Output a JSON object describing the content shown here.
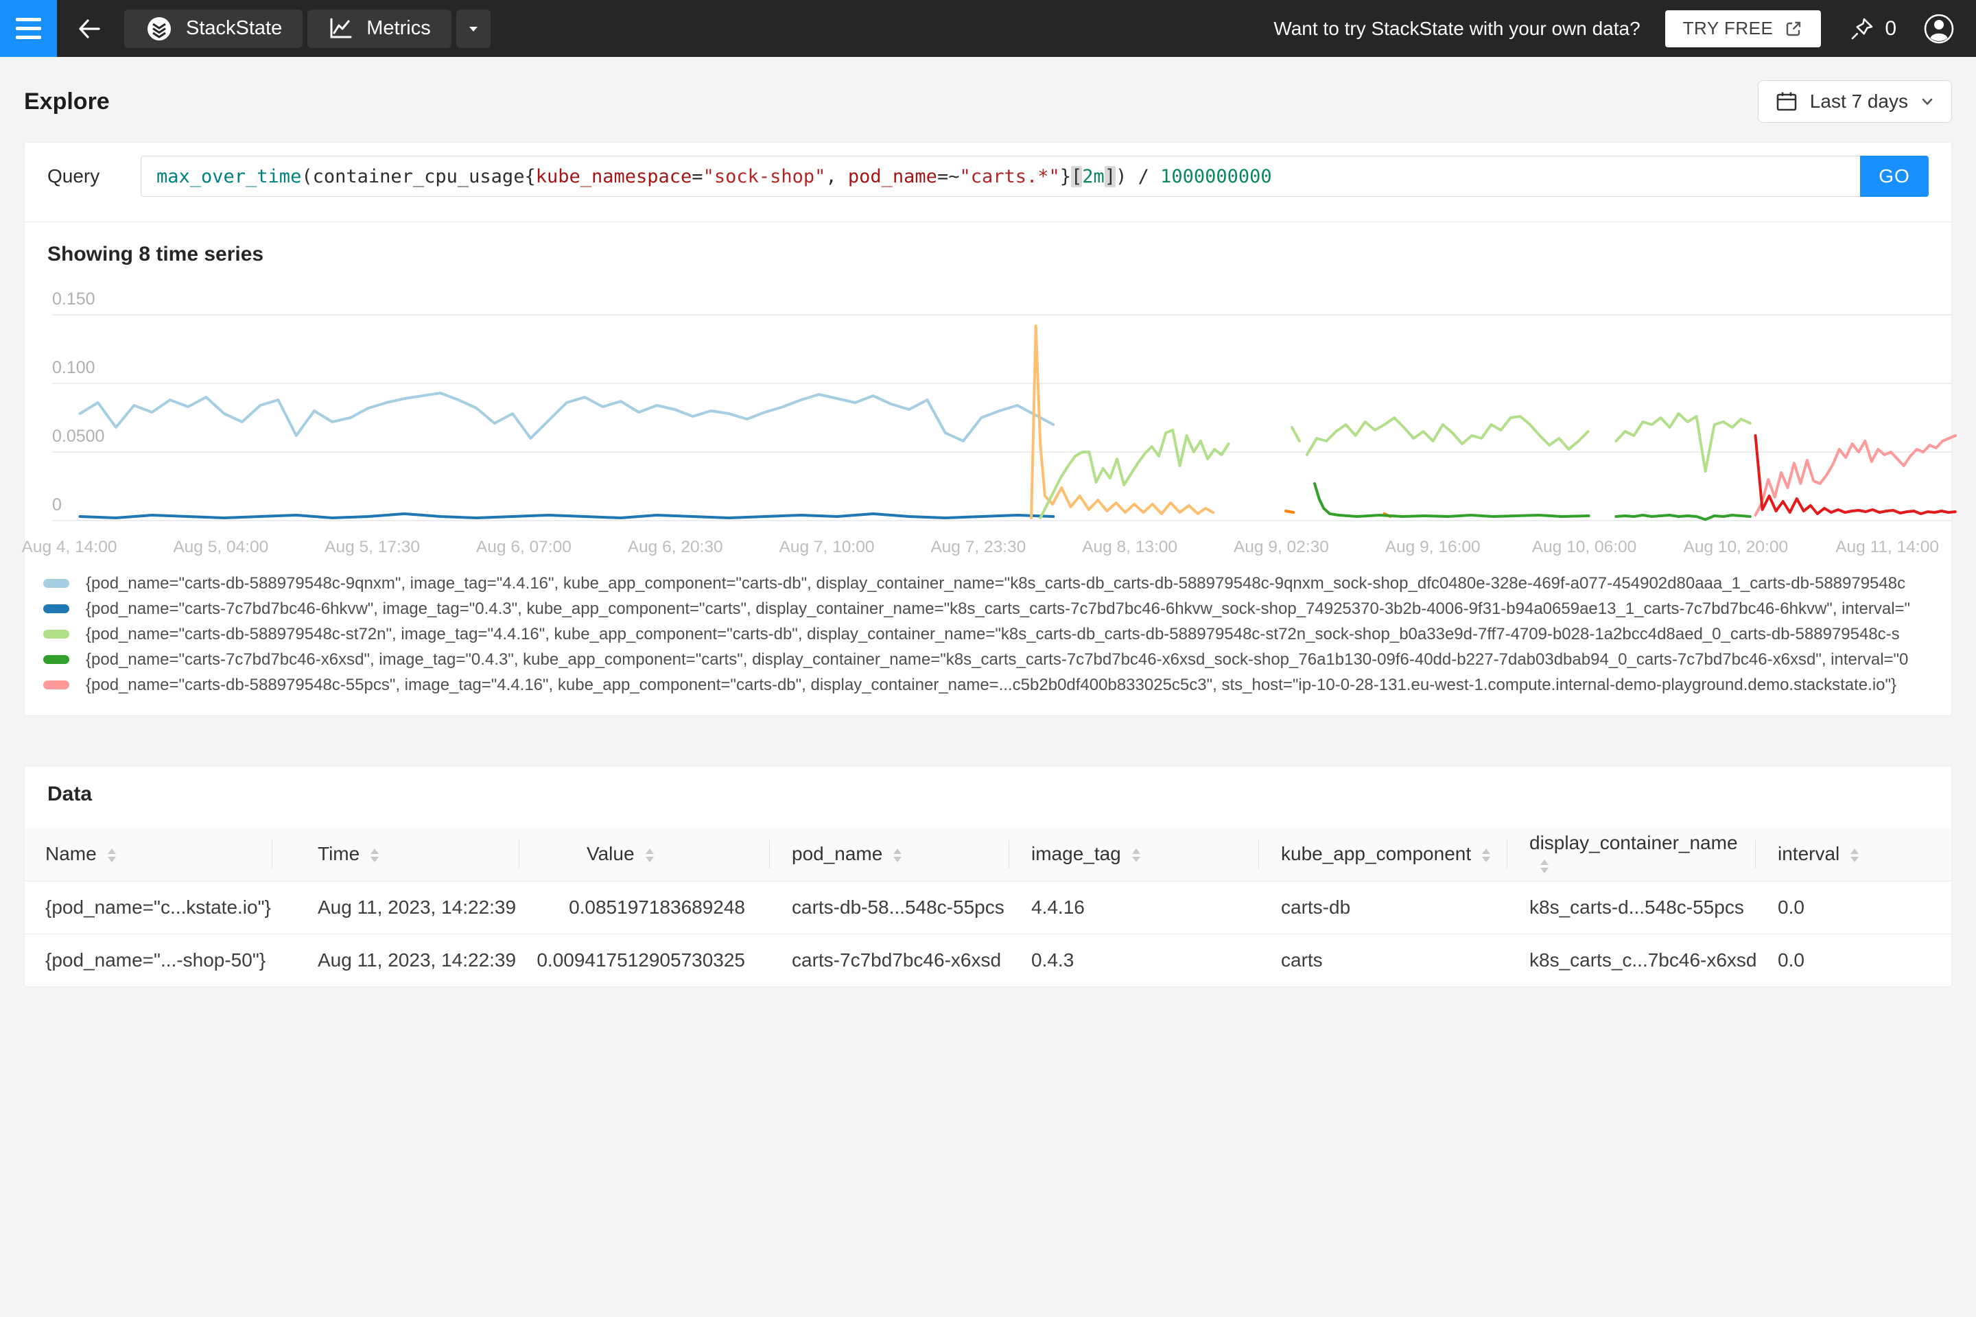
{
  "topbar": {
    "promo": "Want to try StackState with your own data?",
    "try_free_label": "TRY FREE",
    "pin_count": "0",
    "tabs": [
      {
        "label": "StackState"
      },
      {
        "label": "Metrics"
      }
    ]
  },
  "page": {
    "title": "Explore",
    "time_range": "Last 7 days"
  },
  "query": {
    "label": "Query",
    "go_label": "GO",
    "tokens": [
      {
        "t": "max_over_time",
        "c": "fn"
      },
      {
        "t": "(",
        "c": "p"
      },
      {
        "t": "container_cpu_usage",
        "c": "id"
      },
      {
        "t": "{",
        "c": "p"
      },
      {
        "t": "kube_namespace",
        "c": "lbl"
      },
      {
        "t": "=",
        "c": "p"
      },
      {
        "t": "\"sock-shop\"",
        "c": "str"
      },
      {
        "t": ", ",
        "c": "p"
      },
      {
        "t": "pod_name",
        "c": "lbl"
      },
      {
        "t": "=~",
        "c": "p"
      },
      {
        "t": "\"carts.*\"",
        "c": "str"
      },
      {
        "t": "}",
        "c": "p"
      },
      {
        "t": "[",
        "c": "pb"
      },
      {
        "t": "2m",
        "c": "dur"
      },
      {
        "t": "]",
        "c": "pb"
      },
      {
        "t": ")",
        "c": "p"
      },
      {
        "t": " / ",
        "c": "p"
      },
      {
        "t": "1000000000",
        "c": "num"
      }
    ]
  },
  "chart_data": {
    "type": "line",
    "title": "Showing 8 time series",
    "grid": true,
    "legend_position": "bottom",
    "ylim": [
      0,
      0.175
    ],
    "y_ticks": [
      {
        "label": "0.150",
        "v": 0.15
      },
      {
        "label": "0.100",
        "v": 0.1
      },
      {
        "label": "0.0500",
        "v": 0.05
      },
      {
        "label": "0",
        "v": 0
      }
    ],
    "x_ticks": [
      "Aug 4, 14:00",
      "Aug 5, 04:00",
      "Aug 5, 17:30",
      "Aug 6, 07:00",
      "Aug 6, 20:30",
      "Aug 7, 10:00",
      "Aug 7, 23:30",
      "Aug 8, 13:00",
      "Aug 9, 02:30",
      "Aug 9, 16:00",
      "Aug 10, 06:00",
      "Aug 10, 20:00",
      "Aug 11, 14:00"
    ],
    "x_unit": "tick-index (0 = Aug 4 14:00 … 12 = Aug 11 14:00)",
    "series": [
      {
        "name": "carts-db-588979548c-9qnxm",
        "color": "#a6cee3",
        "segments": [
          {
            "t0": 0.07,
            "dt": 0.119,
            "v": [
              0.078,
              0.086,
              0.068,
              0.084,
              0.079,
              0.088,
              0.083,
              0.09,
              0.078,
              0.072,
              0.084,
              0.088,
              0.062,
              0.08,
              0.072,
              0.075,
              0.082,
              0.086,
              0.089,
              0.091,
              0.093,
              0.088,
              0.082,
              0.071,
              0.078,
              0.06,
              0.073,
              0.086,
              0.09,
              0.083,
              0.087,
              0.079,
              0.084,
              0.081,
              0.076,
              0.08,
              0.078,
              0.074,
              0.079,
              0.083,
              0.088,
              0.092,
              0.089,
              0.086,
              0.091,
              0.085,
              0.081,
              0.088,
              0.064,
              0.058,
              0.075,
              0.08,
              0.084,
              0.077,
              0.07
            ]
          }
        ]
      },
      {
        "name": "carts-7c7bd7bc46-6hkvw",
        "color": "#1f78b4",
        "segments": [
          {
            "t0": 0.07,
            "dt": 0.238,
            "v": [
              0.003,
              0.002,
              0.004,
              0.003,
              0.002,
              0.003,
              0.004,
              0.002,
              0.003,
              0.005,
              0.003,
              0.002,
              0.003,
              0.004,
              0.003,
              0.002,
              0.004,
              0.003,
              0.002,
              0.003,
              0.004,
              0.003,
              0.005,
              0.003,
              0.002,
              0.003,
              0.004,
              0.003
            ]
          }
        ]
      },
      {
        "name": "unlabeled-light-orange",
        "color": "#fdbf6f",
        "segments": [
          {
            "pts": [
              [
                6.35,
                0.002
              ],
              [
                6.38,
                0.142
              ],
              [
                6.41,
                0.055
              ],
              [
                6.44,
                0.018
              ],
              [
                6.49,
                0.012
              ],
              [
                6.55,
                0.024
              ],
              [
                6.61,
                0.01
              ],
              [
                6.67,
                0.018
              ],
              [
                6.73,
                0.008
              ],
              [
                6.79,
                0.015
              ],
              [
                6.85,
                0.007
              ],
              [
                6.91,
                0.013
              ],
              [
                6.97,
                0.006
              ],
              [
                7.03,
                0.012
              ],
              [
                7.09,
                0.006
              ],
              [
                7.15,
                0.012
              ],
              [
                7.21,
                0.005
              ],
              [
                7.27,
                0.013
              ],
              [
                7.33,
                0.006
              ],
              [
                7.39,
                0.011
              ],
              [
                7.45,
                0.005
              ],
              [
                7.5,
                0.009
              ],
              [
                7.55,
                0.006
              ]
            ]
          }
        ]
      },
      {
        "name": "unlabeled-dark-orange",
        "color": "#ff7f00",
        "segments": [
          {
            "pts": [
              [
                8.03,
                0.007
              ],
              [
                8.08,
                0.006
              ]
            ]
          },
          {
            "pts": [
              [
                8.68,
                0.005
              ],
              [
                8.72,
                0.003
              ]
            ]
          }
        ]
      },
      {
        "name": "carts-db-588979548c-st72n",
        "color": "#b2df8a",
        "segments": [
          {
            "t0": 6.41,
            "dt": 0.046,
            "v": [
              0.002,
              0.012,
              0.022,
              0.032,
              0.04,
              0.047,
              0.05,
              0.05,
              0.028,
              0.038,
              0.031,
              0.045,
              0.026,
              0.034,
              0.042,
              0.049,
              0.054,
              0.047,
              0.064,
              0.066,
              0.04,
              0.062,
              0.05,
              0.058,
              0.045,
              0.052,
              0.048,
              0.056
            ]
          },
          {
            "pts": [
              [
                8.07,
                0.068
              ],
              [
                8.12,
                0.058
              ]
            ]
          },
          {
            "t0": 8.17,
            "dt": 0.064,
            "v": [
              0.048,
              0.06,
              0.058,
              0.065,
              0.07,
              0.062,
              0.072,
              0.066,
              0.07,
              0.075,
              0.068,
              0.06,
              0.065,
              0.058,
              0.07,
              0.064,
              0.056,
              0.062,
              0.06,
              0.07,
              0.066,
              0.075,
              0.076,
              0.07,
              0.062,
              0.055,
              0.06,
              0.052,
              0.058,
              0.065
            ]
          },
          {
            "t0": 10.21,
            "dt": 0.059,
            "v": [
              0.058,
              0.065,
              0.062,
              0.072,
              0.07,
              0.075,
              0.068,
              0.078,
              0.072,
              0.076,
              0.036,
              0.07,
              0.072,
              0.068,
              0.074,
              0.071
            ]
          }
        ]
      },
      {
        "name": "carts-7c7bd7bc46-x6xsd",
        "color": "#33a02c",
        "segments": [
          {
            "pts": [
              [
                8.22,
                0.027
              ],
              [
                8.25,
                0.016
              ],
              [
                8.28,
                0.009
              ],
              [
                8.32,
                0.005
              ],
              [
                8.38,
                0.004
              ],
              [
                8.5,
                0.003
              ],
              [
                8.65,
                0.004
              ],
              [
                8.8,
                0.003
              ],
              [
                8.95,
                0.0035
              ],
              [
                9.1,
                0.003
              ],
              [
                9.25,
                0.004
              ],
              [
                9.4,
                0.003
              ],
              [
                9.55,
                0.0035
              ],
              [
                9.7,
                0.004
              ],
              [
                9.85,
                0.003
              ],
              [
                10.03,
                0.0035
              ]
            ]
          },
          {
            "t0": 10.21,
            "dt": 0.059,
            "v": [
              0.003,
              0.0035,
              0.003,
              0.004,
              0.003,
              0.0035,
              0.004,
              0.003,
              0.0035,
              0.003,
              0.0008,
              0.0035,
              0.003,
              0.004,
              0.0035,
              0.003
            ]
          }
        ]
      },
      {
        "name": "carts-db-588979548c-55pcs",
        "color": "#fb9a99",
        "segments": [
          {
            "t0": 11.13,
            "dt": 0.0426,
            "v": [
              0.004,
              0.013,
              0.03,
              0.017,
              0.035,
              0.024,
              0.042,
              0.027,
              0.044,
              0.029,
              0.027,
              0.033,
              0.041,
              0.052,
              0.046,
              0.056,
              0.05,
              0.058,
              0.043,
              0.052,
              0.048,
              0.05,
              0.045,
              0.04,
              0.047,
              0.052,
              0.05,
              0.055,
              0.053,
              0.058,
              0.06,
              0.062
            ]
          }
        ]
      },
      {
        "name": "unlabeled-red",
        "color": "#e31a1c",
        "segments": [
          {
            "t0": 11.13,
            "dt": 0.0455,
            "v": [
              0.062,
              0.008,
              0.018,
              0.007,
              0.014,
              0.006,
              0.016,
              0.007,
              0.011,
              0.005,
              0.009,
              0.006,
              0.008,
              0.006,
              0.007,
              0.0075,
              0.0065,
              0.008,
              0.006,
              0.007,
              0.0075,
              0.0055,
              0.0065,
              0.007,
              0.005,
              0.0065,
              0.006,
              0.007,
              0.006,
              0.0065
            ]
          }
        ]
      }
    ]
  },
  "legend": {
    "items": [
      {
        "color": "#a6cee3",
        "text": "{pod_name=\"carts-db-588979548c-9qnxm\", image_tag=\"4.4.16\", kube_app_component=\"carts-db\", display_container_name=\"k8s_carts-db_carts-db-588979548c-9qnxm_sock-shop_dfc0480e-328e-469f-a077-454902d80aaa_1_carts-db-588979548c"
      },
      {
        "color": "#1f78b4",
        "text": "{pod_name=\"carts-7c7bd7bc46-6hkvw\", image_tag=\"0.4.3\", kube_app_component=\"carts\", display_container_name=\"k8s_carts_carts-7c7bd7bc46-6hkvw_sock-shop_74925370-3b2b-4006-9f31-b94a0659ae13_1_carts-7c7bd7bc46-6hkvw\", interval=\""
      },
      {
        "color": "#b2df8a",
        "text": "{pod_name=\"carts-db-588979548c-st72n\", image_tag=\"4.4.16\", kube_app_component=\"carts-db\", display_container_name=\"k8s_carts-db_carts-db-588979548c-st72n_sock-shop_b0a33e9d-7ff7-4709-b028-1a2bcc4d8aed_0_carts-db-588979548c-s"
      },
      {
        "color": "#33a02c",
        "text": "{pod_name=\"carts-7c7bd7bc46-x6xsd\", image_tag=\"0.4.3\", kube_app_component=\"carts\", display_container_name=\"k8s_carts_carts-7c7bd7bc46-x6xsd_sock-shop_76a1b130-09f6-40dd-b227-7dab03dbab94_0_carts-7c7bd7bc46-x6xsd\", interval=\"0"
      },
      {
        "color": "#fb9a99",
        "text": "{pod_name=\"carts-db-588979548c-55pcs\", image_tag=\"4.4.16\", kube_app_component=\"carts-db\", display_container_name=...c5b2b0df400b833025c5c3\", sts_host=\"ip-10-0-28-131.eu-west-1.compute.internal-demo-playground.demo.stackstate.io\"}"
      }
    ]
  },
  "data_table": {
    "title": "Data",
    "columns": [
      "Name",
      "Time",
      "Value",
      "pod_name",
      "image_tag",
      "kube_app_component",
      "display_container_name",
      "interval"
    ],
    "rows": [
      [
        "{pod_name=\"c...kstate.io\"}",
        "Aug 11, 2023, 14:22:39",
        "0.085197183689248",
        "carts-db-58...548c-55pcs",
        "4.4.16",
        "carts-db",
        "k8s_carts-d...548c-55pcs",
        "0.0"
      ],
      [
        "{pod_name=\"...-shop-50\"}",
        "Aug 11, 2023, 14:22:39",
        "0.009417512905730325",
        "carts-7c7bd7bc46-x6xsd",
        "0.4.3",
        "carts",
        "k8s_carts_c...7bc46-x6xsd",
        "0.0"
      ]
    ]
  },
  "colors": {
    "accent": "#1890ff",
    "topbar": "#262626"
  }
}
